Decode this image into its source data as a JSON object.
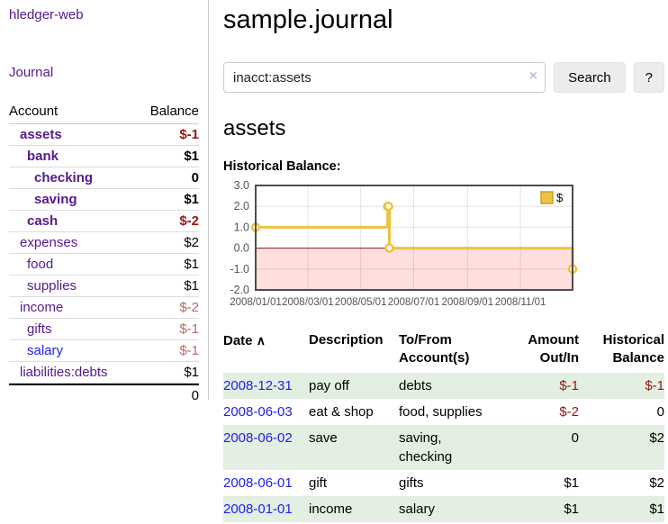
{
  "app": {
    "title": "hledger-web",
    "journal_link": "Journal"
  },
  "sidebar": {
    "header": {
      "account": "Account",
      "balance": "Balance"
    },
    "accounts": [
      {
        "name": "assets",
        "balance": "$-1",
        "depth": 1,
        "bold": true,
        "blue": false
      },
      {
        "name": "bank",
        "balance": "$1",
        "depth": 2,
        "bold": true,
        "blue": false
      },
      {
        "name": "checking",
        "balance": "0",
        "depth": 3,
        "bold": true,
        "blue": false
      },
      {
        "name": "saving",
        "balance": "$1",
        "depth": 3,
        "bold": true,
        "blue": false
      },
      {
        "name": "cash",
        "balance": "$-2",
        "depth": 2,
        "bold": true,
        "blue": false
      },
      {
        "name": "expenses",
        "balance": "$2",
        "depth": 1,
        "bold": false,
        "blue": false
      },
      {
        "name": "food",
        "balance": "$1",
        "depth": 2,
        "bold": false,
        "blue": false
      },
      {
        "name": "supplies",
        "balance": "$1",
        "depth": 2,
        "bold": false,
        "blue": false
      },
      {
        "name": "income",
        "balance": "$-2",
        "depth": 1,
        "bold": false,
        "blue": false
      },
      {
        "name": "gifts",
        "balance": "$-1",
        "depth": 2,
        "bold": false,
        "blue": false
      },
      {
        "name": "salary",
        "balance": "$-1",
        "depth": 2,
        "bold": false,
        "blue": true
      },
      {
        "name": "liabilities:debts",
        "balance": "$1",
        "depth": 1,
        "bold": false,
        "blue": false
      }
    ],
    "total": "0"
  },
  "main": {
    "title": "sample.journal",
    "search": {
      "value": "inacct:assets",
      "clear_icon": "×",
      "button_label": "Search",
      "help_label": "?"
    },
    "account_heading": "assets",
    "chart_label": "Historical Balance:"
  },
  "chart_data": {
    "type": "line",
    "title": "Historical Balance:",
    "steps": true,
    "series": [
      {
        "name": "$",
        "color": "#edc240",
        "points": [
          [
            "2008-01-01",
            1
          ],
          [
            "2008-06-01",
            2
          ],
          [
            "2008-06-02",
            2
          ],
          [
            "2008-06-03",
            0
          ],
          [
            "2008-12-31",
            -1
          ]
        ]
      }
    ],
    "xlim": [
      "2008-01-01",
      "2008-12-31"
    ],
    "ylim": [
      -2,
      3
    ],
    "x_ticks": [
      "2008/01/01",
      "2008/03/01",
      "2008/05/01",
      "2008/07/01",
      "2008/09/01",
      "2008/11/01"
    ],
    "y_ticks": [
      3.0,
      2.0,
      1.0,
      0.0,
      -1.0,
      -2.0
    ],
    "legend": {
      "label": "$",
      "position": "top-right"
    },
    "grid": true,
    "negative_region_color": "rgba(255,0,0,0.13)",
    "zero_line_color": "#8c1717",
    "axis_text_color": "#545454",
    "border_color": "#4d4d4d"
  },
  "register": {
    "sort_icon": "∧",
    "headers": {
      "date": "Date",
      "description": "Description",
      "account": "To/From Account(s)",
      "amount": "Amount Out/In",
      "balance": "Historical Balance"
    },
    "rows": [
      {
        "date": "2008-12-31",
        "description": "pay off",
        "accounts": "debts",
        "amount": "$-1",
        "balance": "$-1"
      },
      {
        "date": "2008-06-03",
        "description": "eat & shop",
        "accounts": "food, supplies",
        "amount": "$-2",
        "balance": "0"
      },
      {
        "date": "2008-06-02",
        "description": "save",
        "accounts": "saving, checking",
        "amount": "0",
        "balance": "$2"
      },
      {
        "date": "2008-06-01",
        "description": "gift",
        "accounts": "gifts",
        "amount": "$1",
        "balance": "$2"
      },
      {
        "date": "2008-01-01",
        "description": "income",
        "accounts": "salary",
        "amount": "$1",
        "balance": "$1"
      }
    ]
  }
}
